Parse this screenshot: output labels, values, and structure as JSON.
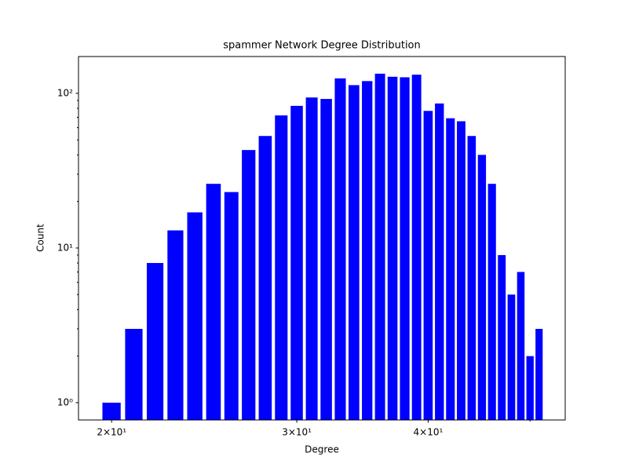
{
  "chart_data": {
    "type": "bar",
    "title": "spammer Network Degree Distribution",
    "xlabel": "Degree",
    "ylabel": "Count",
    "x": [
      20,
      21,
      22,
      23,
      24,
      25,
      26,
      27,
      28,
      29,
      30,
      31,
      32,
      33,
      34,
      35,
      36,
      37,
      38,
      39,
      40,
      41,
      42,
      43,
      44,
      45,
      46,
      47,
      48,
      49,
      50,
      51
    ],
    "values": [
      1,
      3,
      8,
      13,
      17,
      26,
      23,
      43,
      53,
      72,
      83,
      94,
      92,
      125,
      113,
      120,
      134,
      128,
      127,
      132,
      77,
      86,
      69,
      66,
      53,
      40,
      26,
      9,
      5,
      7,
      2,
      3
    ],
    "bar_width": 0.8,
    "color": "#0000ff",
    "xscale": "log",
    "yscale": "log",
    "xlim": [
      18.6,
      54.0
    ],
    "ylim": [
      0.773,
      173
    ],
    "xticks": [
      {
        "value": 20,
        "label": "2×10¹"
      },
      {
        "value": 30,
        "label": "3×10¹"
      },
      {
        "value": 40,
        "label": "4×10¹"
      }
    ],
    "xminor_ticks": [
      50
    ],
    "yticks": [
      {
        "value": 1,
        "label": "10⁰"
      },
      {
        "value": 10,
        "label": "10¹"
      },
      {
        "value": 100,
        "label": "10²"
      }
    ],
    "yminor_ticks": [
      2,
      3,
      4,
      5,
      6,
      7,
      8,
      9,
      20,
      30,
      40,
      50,
      60,
      70,
      80,
      90
    ]
  }
}
